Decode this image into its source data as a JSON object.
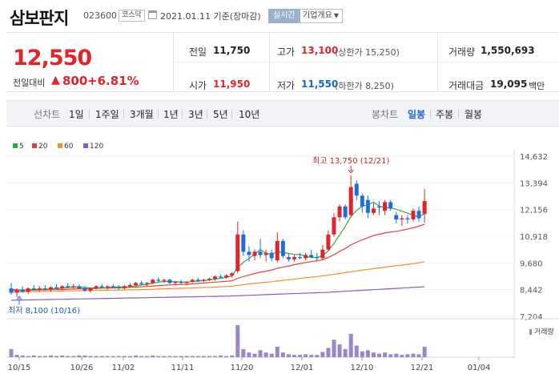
{
  "header": {
    "name": "삼보판지",
    "code": "023600",
    "market": "코스닥",
    "date": "2021.01.11 기준(장마감)",
    "live_label": "실시간",
    "company_label": "기업개요"
  },
  "summary": {
    "price": "12,550",
    "change_label": "전일대비",
    "change_symbol": "▲",
    "change": "800",
    "change_pct": "+6.81%",
    "prev_close_label": "전일",
    "prev_close": "11,750",
    "open_label": "시가",
    "open": "11,950",
    "high_label": "고가",
    "high": "13,100",
    "upper_limit": "(상한가 15,250)",
    "low_label": "저가",
    "low": "11,550",
    "lower_limit": "(하한가 8,250)",
    "volume_label": "거래량",
    "volume": "1,550,693",
    "value_label": "거래대금",
    "value": "19,095",
    "value_unit": "백만"
  },
  "tabs": {
    "line_label": "선차트",
    "periods": [
      "1일",
      "1주일",
      "3개월",
      "1년",
      "3년",
      "5년",
      "10년"
    ],
    "candle_label": "봉차트",
    "candles": [
      "일봉",
      "주봉",
      "월봉"
    ],
    "active_candle": "일봉"
  },
  "chart_data": {
    "type": "candlestick",
    "legend": [
      {
        "label": "5",
        "color": "#2ea64a"
      },
      {
        "label": "20",
        "color": "#e0403f"
      },
      {
        "label": "60",
        "color": "#f0932a"
      },
      {
        "label": "120",
        "color": "#8c5bc0"
      }
    ],
    "y_ticks": [
      "14,632",
      "13,394",
      "12,156",
      "10,918",
      "9,680",
      "8,442",
      "7,204"
    ],
    "ylim": [
      7204,
      14632
    ],
    "x_ticks": [
      "10/15",
      "10/26",
      "11/02",
      "11/11",
      "11/20",
      "12/01",
      "12/10",
      "12/21",
      "01/04"
    ],
    "annotation_high": "최고 13,750 (12/21)",
    "annotation_low": "최저 8,100 (10/16)",
    "volume_label": "거래량",
    "candles": [
      {
        "o": 8500,
        "h": 8750,
        "l": 8200,
        "c": 8300
      },
      {
        "o": 8300,
        "h": 8500,
        "l": 8100,
        "c": 8450
      },
      {
        "o": 8450,
        "h": 8600,
        "l": 8300,
        "c": 8350
      },
      {
        "o": 8350,
        "h": 8550,
        "l": 8250,
        "c": 8500
      },
      {
        "o": 8500,
        "h": 8650,
        "l": 8400,
        "c": 8450
      },
      {
        "o": 8450,
        "h": 8600,
        "l": 8350,
        "c": 8500
      },
      {
        "o": 8500,
        "h": 8650,
        "l": 8400,
        "c": 8450
      },
      {
        "o": 8450,
        "h": 8600,
        "l": 8350,
        "c": 8550
      },
      {
        "o": 8550,
        "h": 8700,
        "l": 8450,
        "c": 8500
      },
      {
        "o": 8500,
        "h": 8650,
        "l": 8400,
        "c": 8600
      },
      {
        "o": 8600,
        "h": 8750,
        "l": 8500,
        "c": 8550
      },
      {
        "o": 8550,
        "h": 8700,
        "l": 8450,
        "c": 8600
      },
      {
        "o": 8600,
        "h": 8700,
        "l": 8450,
        "c": 8500
      },
      {
        "o": 8500,
        "h": 8600,
        "l": 8350,
        "c": 8400
      },
      {
        "o": 8400,
        "h": 8550,
        "l": 8300,
        "c": 8500
      },
      {
        "o": 8500,
        "h": 8650,
        "l": 8450,
        "c": 8600
      },
      {
        "o": 8600,
        "h": 8700,
        "l": 8500,
        "c": 8550
      },
      {
        "o": 8550,
        "h": 8650,
        "l": 8450,
        "c": 8600
      },
      {
        "o": 8600,
        "h": 8700,
        "l": 8500,
        "c": 8550
      },
      {
        "o": 8550,
        "h": 8650,
        "l": 8450,
        "c": 8500
      },
      {
        "o": 8500,
        "h": 8650,
        "l": 8450,
        "c": 8600
      },
      {
        "o": 8600,
        "h": 8750,
        "l": 8550,
        "c": 8650
      },
      {
        "o": 8650,
        "h": 8800,
        "l": 8600,
        "c": 8750
      },
      {
        "o": 8750,
        "h": 8850,
        "l": 8650,
        "c": 8700
      },
      {
        "o": 8700,
        "h": 8800,
        "l": 8600,
        "c": 8750
      },
      {
        "o": 8750,
        "h": 8950,
        "l": 8700,
        "c": 8900
      },
      {
        "o": 8900,
        "h": 9000,
        "l": 8800,
        "c": 8850
      },
      {
        "o": 8850,
        "h": 8950,
        "l": 8750,
        "c": 8900
      },
      {
        "o": 8900,
        "h": 8950,
        "l": 8700,
        "c": 8750
      },
      {
        "o": 8750,
        "h": 8850,
        "l": 8650,
        "c": 8800
      },
      {
        "o": 8800,
        "h": 8900,
        "l": 8700,
        "c": 8750
      },
      {
        "o": 8750,
        "h": 8850,
        "l": 8650,
        "c": 8800
      },
      {
        "o": 8800,
        "h": 8950,
        "l": 8750,
        "c": 8900
      },
      {
        "o": 8900,
        "h": 9000,
        "l": 8800,
        "c": 8850
      },
      {
        "o": 8850,
        "h": 8950,
        "l": 8800,
        "c": 8900
      },
      {
        "o": 8900,
        "h": 9000,
        "l": 8850,
        "c": 8950
      },
      {
        "o": 8950,
        "h": 9100,
        "l": 8850,
        "c": 9050
      },
      {
        "o": 9050,
        "h": 9150,
        "l": 8950,
        "c": 9000
      },
      {
        "o": 9000,
        "h": 9150,
        "l": 8950,
        "c": 9100
      },
      {
        "o": 9100,
        "h": 9250,
        "l": 9000,
        "c": 9200
      },
      {
        "o": 9300,
        "h": 11600,
        "l": 9200,
        "c": 11000
      },
      {
        "o": 11000,
        "h": 11200,
        "l": 10000,
        "c": 10200
      },
      {
        "o": 10200,
        "h": 10450,
        "l": 9750,
        "c": 10050
      },
      {
        "o": 10000,
        "h": 10300,
        "l": 9800,
        "c": 10200
      },
      {
        "o": 10200,
        "h": 10800,
        "l": 9900,
        "c": 10050
      },
      {
        "o": 10050,
        "h": 10300,
        "l": 9750,
        "c": 10150
      },
      {
        "o": 10150,
        "h": 10300,
        "l": 9750,
        "c": 9900
      },
      {
        "o": 9800,
        "h": 11100,
        "l": 9700,
        "c": 10700
      },
      {
        "o": 10700,
        "h": 10800,
        "l": 9900,
        "c": 10000
      },
      {
        "o": 9950,
        "h": 10100,
        "l": 9750,
        "c": 9850
      },
      {
        "o": 9850,
        "h": 10050,
        "l": 9750,
        "c": 9950
      },
      {
        "o": 9950,
        "h": 10150,
        "l": 9850,
        "c": 9900
      },
      {
        "o": 9900,
        "h": 10150,
        "l": 9800,
        "c": 10050
      },
      {
        "o": 10050,
        "h": 10300,
        "l": 9900,
        "c": 9950
      },
      {
        "o": 9950,
        "h": 10150,
        "l": 9800,
        "c": 9900
      },
      {
        "o": 9900,
        "h": 10500,
        "l": 9800,
        "c": 10300
      },
      {
        "o": 10300,
        "h": 11200,
        "l": 10250,
        "c": 11000
      },
      {
        "o": 11000,
        "h": 12000,
        "l": 10900,
        "c": 11800
      },
      {
        "o": 11800,
        "h": 12400,
        "l": 11600,
        "c": 12300
      },
      {
        "o": 12300,
        "h": 12400,
        "l": 11700,
        "c": 11800
      },
      {
        "o": 11900,
        "h": 13750,
        "l": 11800,
        "c": 13200
      },
      {
        "o": 13350,
        "h": 13500,
        "l": 12600,
        "c": 12800
      },
      {
        "o": 12800,
        "h": 12900,
        "l": 12000,
        "c": 12300
      },
      {
        "o": 12600,
        "h": 12800,
        "l": 11750,
        "c": 12000
      },
      {
        "o": 12000,
        "h": 12450,
        "l": 11900,
        "c": 12200
      },
      {
        "o": 12300,
        "h": 12550,
        "l": 11900,
        "c": 12250
      },
      {
        "o": 12100,
        "h": 12600,
        "l": 11900,
        "c": 12500
      },
      {
        "o": 12500,
        "h": 12600,
        "l": 12100,
        "c": 12200
      },
      {
        "o": 11900,
        "h": 12050,
        "l": 11500,
        "c": 11700
      },
      {
        "o": 11700,
        "h": 11900,
        "l": 11400,
        "c": 11750
      },
      {
        "o": 11750,
        "h": 11900,
        "l": 11500,
        "c": 11700
      },
      {
        "o": 11700,
        "h": 12200,
        "l": 11600,
        "c": 12100
      },
      {
        "o": 12100,
        "h": 12300,
        "l": 11600,
        "c": 11750
      },
      {
        "o": 11950,
        "h": 13100,
        "l": 11550,
        "c": 12550
      }
    ],
    "ma5": [
      8460,
      8430,
      8420,
      8440,
      8450,
      8460,
      8460,
      8470,
      8480,
      8520,
      8540,
      8560,
      8560,
      8540,
      8520,
      8520,
      8530,
      8530,
      8560,
      8570,
      8570,
      8580,
      8620,
      8660,
      8690,
      8740,
      8790,
      8820,
      8820,
      8810,
      8800,
      8790,
      8820,
      8840,
      8860,
      8890,
      8930,
      8960,
      9010,
      9080,
      9470,
      9710,
      9890,
      10090,
      10300,
      10130,
      10070,
      10210,
      10160,
      10120,
      10070,
      10080,
      9970,
      9940,
      9930,
      10030,
      10240,
      10590,
      10980,
      11380,
      11840,
      12110,
      12320,
      12380,
      12500,
      12310,
      12250,
      12230,
      12170,
      12080,
      11990,
      11880,
      11820,
      11960
    ],
    "ma20": [
      8420,
      8410,
      8410,
      8420,
      8420,
      8430,
      8430,
      8440,
      8440,
      8450,
      8460,
      8470,
      8480,
      8490,
      8490,
      8500,
      8510,
      8520,
      8520,
      8530,
      8540,
      8550,
      8560,
      8580,
      8590,
      8610,
      8630,
      8650,
      8660,
      8670,
      8680,
      8690,
      8710,
      8730,
      8750,
      8770,
      8790,
      8810,
      8830,
      8850,
      8970,
      9050,
      9120,
      9190,
      9250,
      9300,
      9350,
      9430,
      9490,
      9540,
      9600,
      9650,
      9700,
      9740,
      9780,
      9830,
      9930,
      10060,
      10220,
      10350,
      10520,
      10640,
      10750,
      10850,
      10950,
      11010,
      11070,
      11110,
      11150,
      11190,
      11250,
      11320,
      11380,
      11480
    ],
    "ma60": [
      8330,
      8335,
      8340,
      8345,
      8350,
      8355,
      8360,
      8365,
      8370,
      8375,
      8380,
      8385,
      8390,
      8395,
      8400,
      8405,
      8410,
      8415,
      8420,
      8425,
      8430,
      8435,
      8440,
      8445,
      8450,
      8460,
      8470,
      8480,
      8490,
      8500,
      8505,
      8510,
      8520,
      8530,
      8540,
      8550,
      8560,
      8570,
      8585,
      8600,
      8640,
      8670,
      8700,
      8730,
      8760,
      8785,
      8810,
      8840,
      8870,
      8900,
      8930,
      8960,
      8990,
      9020,
      9050,
      9080,
      9115,
      9150,
      9190,
      9230,
      9270,
      9310,
      9345,
      9380,
      9415,
      9450,
      9485,
      9520,
      9550,
      9580,
      9615,
      9650,
      9690,
      9740
    ],
    "ma120": [
      7950,
      7955,
      7960,
      7965,
      7970,
      7975,
      7980,
      7985,
      7990,
      7995,
      8000,
      8005,
      8010,
      8015,
      8020,
      8025,
      8030,
      8035,
      8040,
      8045,
      8050,
      8055,
      8060,
      8065,
      8070,
      8075,
      8080,
      8085,
      8090,
      8095,
      8100,
      8105,
      8110,
      8115,
      8120,
      8125,
      8130,
      8135,
      8140,
      8150,
      8160,
      8170,
      8180,
      8190,
      8200,
      8210,
      8220,
      8230,
      8240,
      8250,
      8260,
      8270,
      8280,
      8290,
      8300,
      8310,
      8320,
      8335,
      8350,
      8365,
      8380,
      8395,
      8410,
      8425,
      8440,
      8455,
      8470,
      8485,
      8500,
      8515,
      8530,
      8545,
      8560,
      8580
    ],
    "volume": [
      14,
      4,
      3,
      2,
      3,
      2,
      2,
      3,
      2,
      3,
      2,
      2,
      3,
      3,
      2,
      2,
      2,
      2,
      2,
      2,
      2,
      2,
      3,
      2,
      2,
      3,
      2,
      2,
      2,
      2,
      2,
      2,
      2,
      2,
      2,
      2,
      2,
      3,
      2,
      3,
      55,
      14,
      8,
      6,
      12,
      8,
      6,
      18,
      8,
      5,
      4,
      4,
      5,
      4,
      4,
      9,
      16,
      30,
      22,
      14,
      40,
      20,
      10,
      12,
      8,
      6,
      8,
      5,
      6,
      4,
      5,
      6,
      5,
      18
    ]
  }
}
